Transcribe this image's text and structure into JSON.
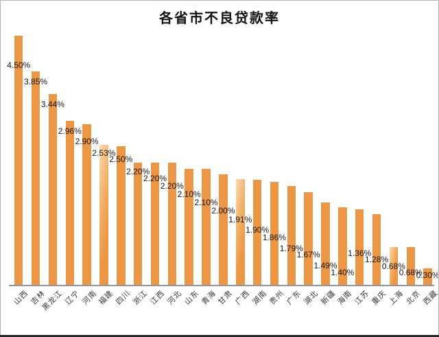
{
  "page": {
    "background_color": "#ffffff",
    "frame_border_color": "#b4b4b4",
    "bottom_edge_color": "#262626"
  },
  "chart_data": {
    "type": "bar",
    "title": "各省市不良贷款率",
    "categories": [
      "山西",
      "吉林",
      "黑龙江",
      "辽宁",
      "河南",
      "福建",
      "四川",
      "浙江",
      "江西",
      "河北",
      "山东",
      "青海",
      "甘肃",
      "广西",
      "湖南",
      "贵州",
      "广东",
      "湖北",
      "新疆",
      "海南",
      "江苏",
      "重庆",
      "上海",
      "北京",
      "西藏"
    ],
    "values": [
      4.5,
      3.85,
      3.44,
      2.96,
      2.9,
      2.53,
      2.5,
      2.2,
      2.2,
      2.2,
      2.1,
      2.1,
      2.0,
      1.91,
      1.9,
      1.86,
      1.79,
      1.67,
      1.49,
      1.4,
      1.36,
      1.28,
      0.68,
      0.68,
      0.3
    ],
    "value_labels": [
      "4.50%",
      "3.85%",
      "3.44%",
      "2.96%",
      "2.90%",
      "2.53%",
      "2.50%",
      "2.20%",
      "2.20%",
      "2.20%",
      "2.10%",
      "2.10%",
      "2.00%",
      "1.91%",
      "1.90%",
      "1.86%",
      "1.79%",
      "1.67%",
      "1.49%",
      "1.40%",
      "1.36%",
      "1.28%",
      "0.68%",
      "0.68%",
      "0.30%"
    ],
    "xlabel": "",
    "ylabel": "",
    "ylim": [
      0,
      4.5
    ],
    "grid": false,
    "legend": "none",
    "y_axis_visible": false,
    "x_tick_rotation_deg": 45,
    "bar_color": "#EC9745",
    "value_label_color": "#161616",
    "axis_line_color": "#8d96a2",
    "tick_label_color": "#3a3a3a",
    "title_color": "#121212"
  }
}
